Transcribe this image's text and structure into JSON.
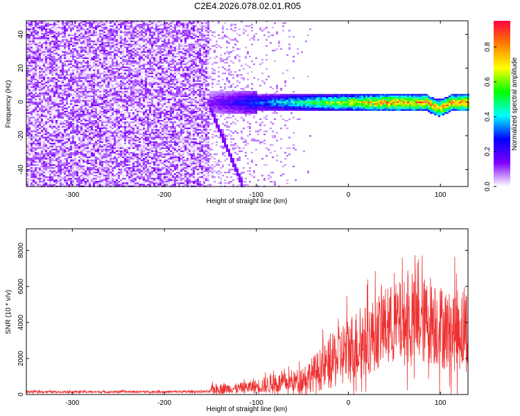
{
  "title": "C2E4.2026.078.02.01.R05",
  "chart_data": [
    {
      "type": "heatmap",
      "title": "C2E4.2026.078.02.01.R05",
      "xlabel": "Height of straight line (km)",
      "ylabel": "Frequency (Hz)",
      "xlim": [
        -350,
        130
      ],
      "ylim": [
        -50,
        48
      ],
      "x_ticks": [
        -300,
        -200,
        -100,
        0,
        100
      ],
      "y_ticks": [
        -40,
        -20,
        0,
        20,
        40
      ],
      "colorbar": {
        "label": "Normalized spectral amplitude",
        "range": [
          0,
          0.95
        ],
        "ticks": [
          0.0,
          0.2,
          0.4,
          0.6,
          0.8
        ],
        "colors": [
          "#ffffff",
          "#8000ff",
          "#0000ff",
          "#00ffff",
          "#00ff00",
          "#ffff00",
          "#ff8000",
          "#ff0040"
        ]
      },
      "description_features": {
        "noise_region_x": [
          -350,
          -150
        ],
        "signal_band_center_hz": 0,
        "signal_band_halfwidth_hz": 6,
        "band_start_x": -152,
        "dip_x": 95
      }
    },
    {
      "type": "line",
      "xlabel": "Height of straight line (km)",
      "ylabel": "SNR (10 * v/v)",
      "xlim": [
        -350,
        130
      ],
      "ylim": [
        0,
        9200
      ],
      "x_ticks": [
        -300,
        -200,
        -100,
        0,
        100
      ],
      "y_ticks": [
        0,
        2000,
        4000,
        6000,
        8000
      ],
      "series": [
        {
          "name": "SNR",
          "color": "#ee3030",
          "envelope": {
            "x": [
              -350,
              -200,
              -150,
              -148,
              -120,
              -100,
              -80,
              -60,
              -40,
              -20,
              0,
              20,
              40,
              60,
              80,
              90,
              100,
              110,
              120,
              130
            ],
            "mean": [
              150,
              150,
              160,
              300,
              350,
              450,
              600,
              700,
              1100,
              1700,
              2500,
              3000,
              3800,
              4000,
              4000,
              4200,
              3800,
              3500,
              3700,
              3600
            ],
            "spread": [
              80,
              80,
              90,
              350,
              350,
              500,
              700,
              700,
              1200,
              1800,
              2500,
              2500,
              2700,
              3000,
              3000,
              3200,
              3000,
              2800,
              3000,
              3000
            ]
          }
        }
      ]
    }
  ]
}
